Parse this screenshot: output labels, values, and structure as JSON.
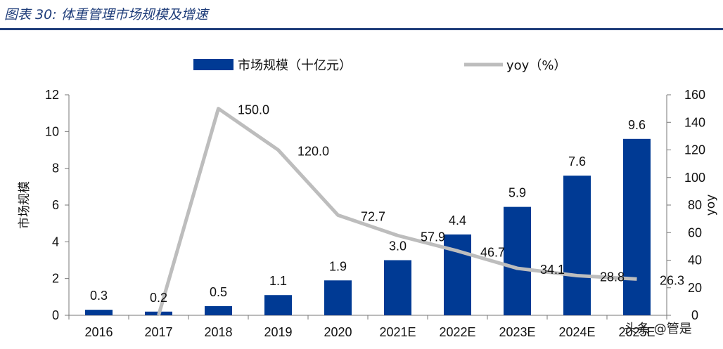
{
  "caption": "图表 30:  体重管理市场规模及增速",
  "watermark": "头条 @管是",
  "colors": {
    "bar": "#003a94",
    "line": "#bdbdbd",
    "rule": "#1f3d7a"
  },
  "chart_data": {
    "type": "bar",
    "categories": [
      "2016",
      "2017",
      "2018",
      "2019",
      "2020",
      "2021E",
      "2022E",
      "2023E",
      "2024E",
      "2025E"
    ],
    "series": [
      {
        "name": "市场规模（十亿元）",
        "type": "bar",
        "axis": "left",
        "values": [
          0.3,
          0.2,
          0.5,
          1.1,
          1.9,
          3.0,
          4.4,
          5.9,
          7.6,
          9.6
        ],
        "labels": [
          "0.3",
          "0.2",
          "0.5",
          "1.1",
          "1.9",
          "3.0",
          "4.4",
          "5.9",
          "7.6",
          "9.6"
        ]
      },
      {
        "name": "yoy（%）",
        "type": "line",
        "axis": "right",
        "values": [
          null,
          0,
          150.0,
          120.0,
          72.7,
          57.9,
          46.7,
          34.1,
          28.8,
          26.3
        ],
        "labels": [
          "",
          "",
          "150.0",
          "120.0",
          "72.7",
          "57.9",
          "46.7",
          "34.1",
          "28.8",
          "26.3"
        ]
      }
    ],
    "ylabel": "市场规模",
    "y2label": "yoy",
    "ylim": [
      0,
      12
    ],
    "y2lim": [
      0,
      160
    ],
    "yticks": [
      "0",
      "2",
      "4",
      "6",
      "8",
      "10",
      "12"
    ],
    "y2ticks": [
      "0",
      "20",
      "40",
      "60",
      "80",
      "100",
      "120",
      "140",
      "160"
    ],
    "legend": "top",
    "grid": false
  }
}
